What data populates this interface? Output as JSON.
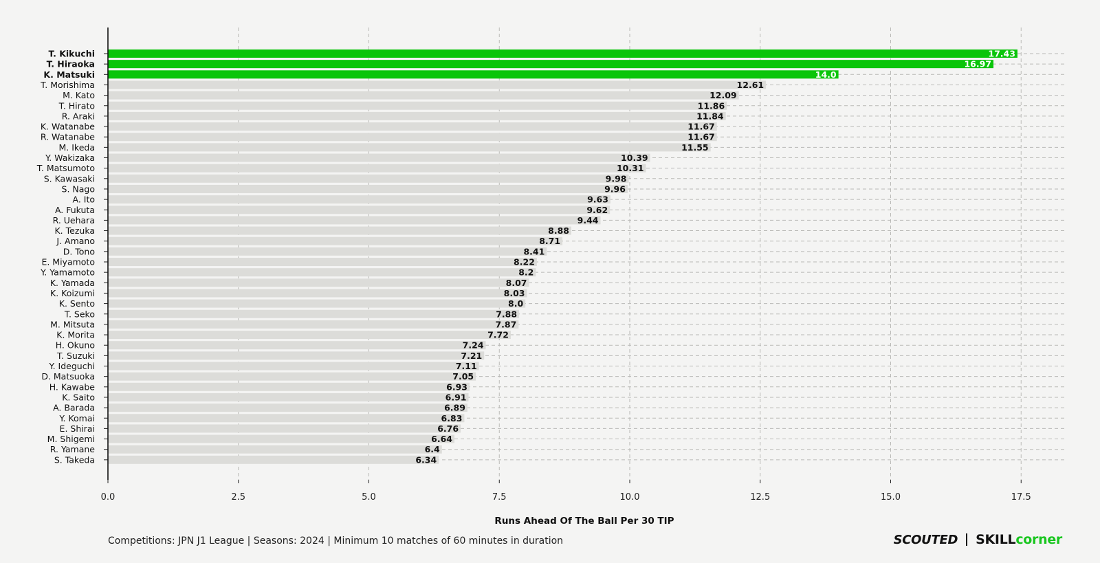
{
  "chart_data": {
    "type": "bar",
    "orientation": "horizontal",
    "xlabel": "Runs Ahead Of The Ball Per 30 TIP",
    "xlim": [
      0,
      18.3
    ],
    "xticks": [
      "0.0",
      "2.5",
      "5.0",
      "7.5",
      "10.0",
      "12.5",
      "15.0",
      "17.5"
    ],
    "grid": true,
    "highlight_color": "#0ac50a",
    "bar_color": "#dcdcd9",
    "categories": [
      "T. Kikuchi",
      "T. Hiraoka",
      "K. Matsuki",
      "T. Morishima",
      "M. Kato",
      "T. Hirato",
      "R. Araki",
      "K. Watanabe",
      "R. Watanabe",
      "M. Ikeda",
      "Y. Wakizaka",
      "T. Matsumoto",
      "S. Kawasaki",
      "S. Nago",
      "A. Ito",
      "A. Fukuta",
      "R. Uehara",
      "K. Tezuka",
      "J. Amano",
      "D. Tono",
      "E. Miyamoto",
      "Y. Yamamoto",
      "K. Yamada",
      "K. Koizumi",
      "K. Sento",
      "T. Seko",
      "M. Mitsuta",
      "K. Morita",
      "H. Okuno",
      "T. Suzuki",
      "Y. Ideguchi",
      "D. Matsuoka",
      "H. Kawabe",
      "K. Saito",
      "A. Barada",
      "Y. Komai",
      "E. Shirai",
      "M. Shigemi",
      "R. Yamane",
      "S. Takeda"
    ],
    "values": [
      17.43,
      16.97,
      14.0,
      12.61,
      12.09,
      11.86,
      11.84,
      11.67,
      11.67,
      11.55,
      10.39,
      10.31,
      9.98,
      9.96,
      9.63,
      9.62,
      9.44,
      8.88,
      8.71,
      8.41,
      8.22,
      8.2,
      8.07,
      8.03,
      8.0,
      7.88,
      7.87,
      7.72,
      7.24,
      7.21,
      7.11,
      7.05,
      6.93,
      6.91,
      6.89,
      6.83,
      6.76,
      6.64,
      6.4,
      6.34
    ],
    "value_labels": [
      "17.43",
      "16.97",
      "14.0",
      "12.61",
      "12.09",
      "11.86",
      "11.84",
      "11.67",
      "11.67",
      "11.55",
      "10.39",
      "10.31",
      "9.98",
      "9.96",
      "9.63",
      "9.62",
      "9.44",
      "8.88",
      "8.71",
      "8.41",
      "8.22",
      "8.2",
      "8.07",
      "8.03",
      "8.0",
      "7.88",
      "7.87",
      "7.72",
      "7.24",
      "7.21",
      "7.11",
      "7.05",
      "6.93",
      "6.91",
      "6.89",
      "6.83",
      "6.76",
      "6.64",
      "6.4",
      "6.34"
    ],
    "highlighted": [
      "T. Kikuchi",
      "T. Hiraoka",
      "K. Matsuki"
    ]
  },
  "footer": {
    "note": "Competitions: JPN J1 League | Seasons: 2024 | Minimum 10 matches of 60 minutes in duration",
    "logo_scouted": "SCOUTED",
    "logo_skill": "SKILL",
    "logo_corner": "corner"
  }
}
